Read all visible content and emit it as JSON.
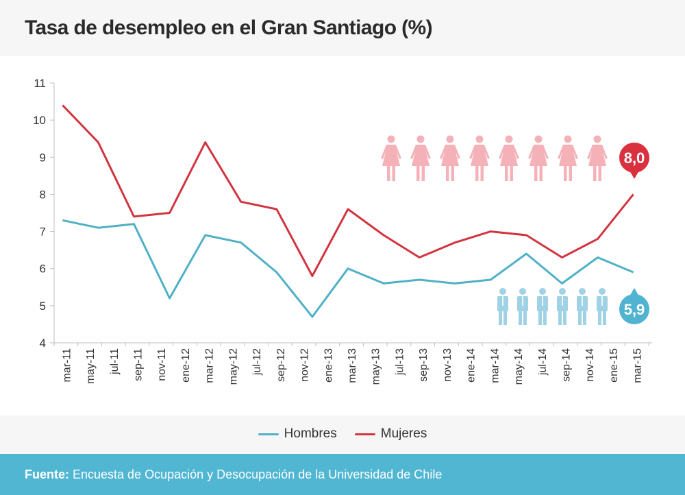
{
  "header": {
    "title": "Tasa de desempleo en el Gran Santiago (%)"
  },
  "colors": {
    "hombres": "#4fb0c6",
    "mujeres": "#d2343f",
    "women_icon": "#f4b2b8",
    "men_icon": "#9fd2e4",
    "badge_mujeres": "#d9323e",
    "badge_hombres": "#4fb3d1",
    "footer_bg": "#50b6d2"
  },
  "chart_data": {
    "type": "line",
    "title": "Tasa de desempleo en el Gran Santiago (%)",
    "xlabel": "",
    "ylabel": "",
    "ylim": [
      4,
      11
    ],
    "yticks": [
      4,
      5,
      6,
      7,
      8,
      9,
      10,
      11
    ],
    "x_tick_labels": [
      "mar-11",
      "may-11",
      "jul-11",
      "sep-11",
      "nov-11",
      "ene-12",
      "mar-12",
      "may-12",
      "jul-12",
      "sep-12",
      "nov-12",
      "ene-13",
      "mar-13",
      "may-13",
      "jul-13",
      "sep-13",
      "nov-13",
      "ene-14",
      "mar-14",
      "may-14",
      "jul-14",
      "sep-14",
      "nov-14",
      "ene-15",
      "mar-15"
    ],
    "x": [
      "mar-11",
      "jun-11",
      "sep-11",
      "dic-11",
      "mar-12",
      "jun-12",
      "sep-12",
      "dic-12",
      "mar-13",
      "jun-13",
      "sep-13",
      "dic-13",
      "mar-14",
      "jun-14",
      "sep-14",
      "dic-14",
      "mar-15"
    ],
    "x_month_index": [
      0,
      3,
      6,
      9,
      12,
      15,
      18,
      21,
      24,
      27,
      30,
      33,
      36,
      39,
      42,
      45,
      48
    ],
    "series": [
      {
        "name": "Hombres",
        "color": "#4fb0c6",
        "values": [
          7.3,
          7.1,
          7.2,
          5.2,
          6.9,
          6.7,
          5.9,
          4.7,
          6.0,
          5.6,
          5.7,
          5.6,
          5.7,
          6.4,
          5.6,
          6.3,
          5.9
        ]
      },
      {
        "name": "Mujeres",
        "color": "#d2343f",
        "values": [
          10.4,
          9.4,
          7.4,
          7.5,
          9.4,
          7.8,
          7.6,
          5.8,
          7.6,
          6.9,
          6.3,
          6.7,
          7.0,
          6.9,
          6.3,
          6.8,
          8.0
        ]
      }
    ],
    "grid": false,
    "legend": "bottom-center",
    "annotations": [
      {
        "series": "Mujeres",
        "label": "8,0",
        "icon": "woman-icon",
        "icon_count": 8
      },
      {
        "series": "Hombres",
        "label": "5,9",
        "icon": "man-icon",
        "icon_count": 6
      }
    ]
  },
  "legend": {
    "items": [
      {
        "label": "Hombres",
        "color": "#4fb0c6"
      },
      {
        "label": "Mujeres",
        "color": "#d2343f"
      }
    ]
  },
  "footer": {
    "source_label": "Fuente:",
    "source_text": " Encuesta de Ocupación y Desocupación de la Universidad de Chile"
  }
}
